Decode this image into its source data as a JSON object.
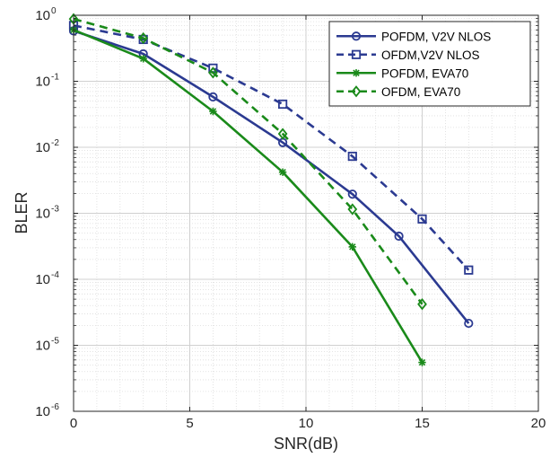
{
  "chart_data": {
    "type": "line",
    "title": "",
    "xlabel": "SNR(dB)",
    "ylabel": "BLER",
    "xlim": [
      0,
      20
    ],
    "ylim": [
      1e-06,
      1
    ],
    "yscale": "log",
    "grid": true,
    "minor_grid": true,
    "legend_position": "top-right",
    "x_ticks": [
      0,
      5,
      10,
      15,
      20
    ],
    "x_tick_labels": [
      "0",
      "5",
      "10",
      "15",
      "20"
    ],
    "y_ticks": [
      1e-06,
      1e-05,
      0.0001,
      0.001,
      0.01,
      0.1,
      1
    ],
    "y_tick_labels": [
      {
        "base": "10",
        "exp": "-6"
      },
      {
        "base": "10",
        "exp": "-5"
      },
      {
        "base": "10",
        "exp": "-4"
      },
      {
        "base": "10",
        "exp": "-3"
      },
      {
        "base": "10",
        "exp": "-2"
      },
      {
        "base": "10",
        "exp": "-1"
      },
      {
        "base": "10",
        "exp": "0"
      }
    ],
    "series": [
      {
        "name": "POFDM, V2V NLOS",
        "color": "#2b3a91",
        "line": "solid",
        "marker": "circle",
        "x": [
          0,
          3,
          6,
          9,
          12,
          14,
          17
        ],
        "y": [
          0.58,
          0.26,
          0.058,
          0.0118,
          0.00195,
          0.00045,
          2.15e-05
        ]
      },
      {
        "name": "OFDM,V2V NLOS",
        "color": "#2b3a91",
        "line": "dashed",
        "marker": "square",
        "x": [
          0,
          3,
          6,
          9,
          12,
          15,
          17
        ],
        "y": [
          0.7,
          0.43,
          0.158,
          0.045,
          0.0073,
          0.00082,
          0.000138
        ]
      },
      {
        "name": "POFDM, EVA70",
        "color": "#1a8a1a",
        "line": "solid",
        "marker": "asterisk",
        "x": [
          0,
          3,
          6,
          9,
          12,
          15
        ],
        "y": [
          0.6,
          0.22,
          0.035,
          0.0042,
          0.00031,
          5.5e-06
        ]
      },
      {
        "name": "OFDM, EVA70",
        "color": "#1a8a1a",
        "line": "dashed",
        "marker": "diamond",
        "x": [
          0,
          3,
          6,
          9,
          12,
          15
        ],
        "y": [
          0.88,
          0.45,
          0.135,
          0.016,
          0.00115,
          4.2e-05
        ]
      }
    ]
  }
}
